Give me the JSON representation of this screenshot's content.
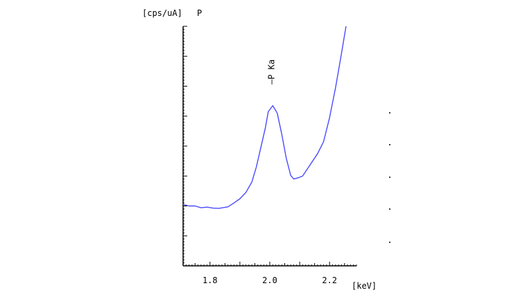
{
  "chart_data": {
    "type": "line",
    "ylabel": "[cps/uA]",
    "element": "P",
    "xlabel": "[keV]",
    "xlim": [
      1.71,
      2.29
    ],
    "ylim": [
      0,
      8
    ],
    "x_ticks": [
      1.8,
      2.0,
      2.2
    ],
    "x_tick_labels": [
      "1.8",
      "2.0",
      "2.2"
    ],
    "y_ticks": [
      1,
      2,
      3,
      4,
      5,
      6,
      7
    ],
    "y_tick_labels": [],
    "grid": false,
    "annotations": [
      {
        "text": "—P Ka",
        "x": 2.01,
        "orientation": "vertical"
      }
    ],
    "series": [
      {
        "color": "#4a4aff",
        "points": [
          [
            1.71,
            2.05
          ],
          [
            1.73,
            2.0
          ],
          [
            1.75,
            2.0
          ],
          [
            1.77,
            1.94
          ],
          [
            1.79,
            1.96
          ],
          [
            1.81,
            1.93
          ],
          [
            1.83,
            1.92
          ],
          [
            1.86,
            1.97
          ],
          [
            1.88,
            2.1
          ],
          [
            1.9,
            2.24
          ],
          [
            1.92,
            2.45
          ],
          [
            1.94,
            2.8
          ],
          [
            1.955,
            3.3
          ],
          [
            1.97,
            3.95
          ],
          [
            1.985,
            4.6
          ],
          [
            1.995,
            5.15
          ],
          [
            2.01,
            5.35
          ],
          [
            2.025,
            5.1
          ],
          [
            2.04,
            4.4
          ],
          [
            2.055,
            3.6
          ],
          [
            2.07,
            3.02
          ],
          [
            2.08,
            2.9
          ],
          [
            2.095,
            2.94
          ],
          [
            2.11,
            3.0
          ],
          [
            2.13,
            3.3
          ],
          [
            2.16,
            3.75
          ],
          [
            2.18,
            4.15
          ],
          [
            2.2,
            4.95
          ],
          [
            2.22,
            5.95
          ],
          [
            2.24,
            7.1
          ],
          [
            2.255,
            8.0
          ]
        ]
      }
    ]
  }
}
